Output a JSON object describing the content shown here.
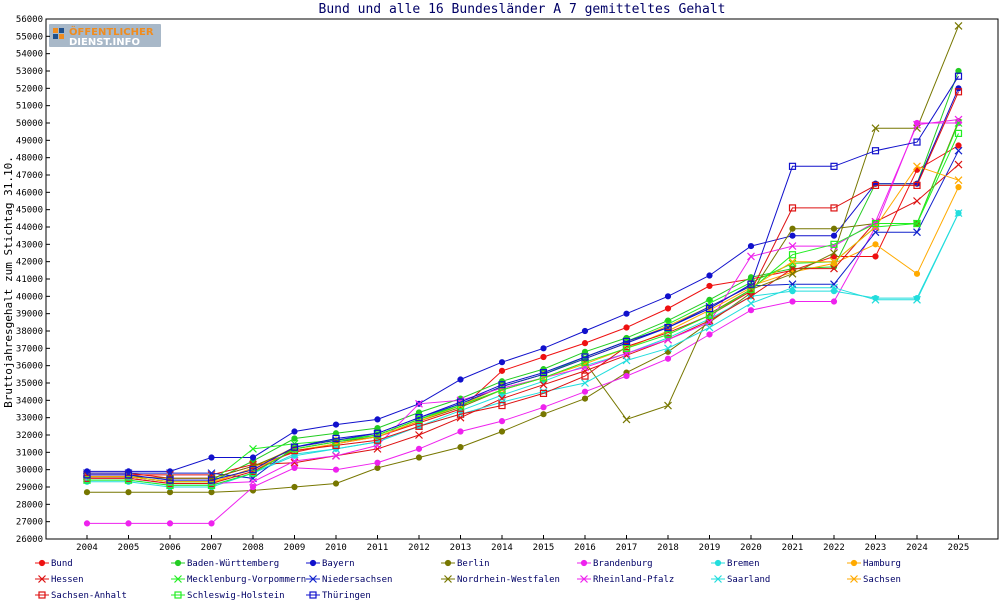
{
  "logo": {
    "line1": "ÖFFENTLICHER",
    "line2": "DIENST.INFO"
  },
  "chart_data": {
    "type": "line",
    "title": "Bund und alle 16 Bundesländer A 7 gemitteltes Gehalt",
    "xlabel": "",
    "ylabel": "Bruttojahresgehalt zum Stichtag 31.10.",
    "x": [
      "2004",
      "2005",
      "2006",
      "2007",
      "2008",
      "2009",
      "2010",
      "2011",
      "2012",
      "2013",
      "2014",
      "2015",
      "2016",
      "2017",
      "2018",
      "2019",
      "2020",
      "2021",
      "2022",
      "2023",
      "2024",
      "2025"
    ],
    "ylim": [
      26000,
      56000
    ],
    "yticks": [
      26000,
      27000,
      28000,
      29000,
      30000,
      31000,
      32000,
      33000,
      34000,
      35000,
      36000,
      37000,
      38000,
      39000,
      40000,
      41000,
      42000,
      43000,
      44000,
      45000,
      46000,
      47000,
      48000,
      49000,
      50000,
      51000,
      52000,
      53000,
      54000,
      55000,
      56000
    ],
    "grid": false,
    "legend_position": "bottom",
    "series": [
      {
        "name": "Bund",
        "color": "#ee1111",
        "marker": "dot",
        "values": [
          29800,
          29800,
          29500,
          29500,
          30200,
          31000,
          31500,
          31900,
          32700,
          33500,
          35700,
          36500,
          37300,
          38200,
          39300,
          40600,
          41000,
          41500,
          42300,
          42300,
          47300,
          48700
        ]
      },
      {
        "name": "Baden-Württemberg",
        "color": "#22cc22",
        "marker": "dot",
        "values": [
          29600,
          29600,
          29300,
          29300,
          30500,
          31800,
          32100,
          32400,
          33300,
          34100,
          35100,
          35800,
          36800,
          37600,
          38600,
          39800,
          41100,
          41600,
          41700,
          46500,
          46500,
          53000
        ]
      },
      {
        "name": "Bayern",
        "color": "#1111cc",
        "marker": "dot",
        "values": [
          29900,
          29900,
          29900,
          30700,
          30700,
          32200,
          32600,
          32900,
          33800,
          35200,
          36200,
          37000,
          38000,
          39000,
          40000,
          41200,
          42900,
          43500,
          43500,
          46500,
          46500,
          52000
        ]
      },
      {
        "name": "Berlin",
        "color": "#777700",
        "marker": "dot",
        "values": [
          28700,
          28700,
          28700,
          28700,
          28800,
          29000,
          29200,
          30100,
          30700,
          31300,
          32200,
          33200,
          34100,
          35600,
          36800,
          38500,
          40200,
          43900,
          43900,
          44200,
          44200,
          50100
        ]
      },
      {
        "name": "Brandenburg",
        "color": "#ee22ee",
        "marker": "dot",
        "values": [
          26900,
          26900,
          26900,
          26900,
          29000,
          30100,
          30000,
          30400,
          31200,
          32200,
          32800,
          33600,
          34500,
          35400,
          36400,
          37800,
          39200,
          39700,
          39700,
          44000,
          50000,
          50000
        ]
      },
      {
        "name": "Bremen",
        "color": "#22dddd",
        "marker": "dot",
        "values": [
          29300,
          29300,
          29000,
          29000,
          29800,
          30800,
          31200,
          31600,
          32500,
          33400,
          34300,
          35100,
          36000,
          36700,
          37600,
          38700,
          40000,
          40300,
          40300,
          39900,
          39900,
          44800
        ]
      },
      {
        "name": "Hamburg",
        "color": "#ffaa00",
        "marker": "dot",
        "values": [
          29500,
          29500,
          29200,
          29200,
          30100,
          31300,
          31700,
          32000,
          32900,
          33700,
          34800,
          35500,
          36400,
          37300,
          38300,
          39400,
          40600,
          41400,
          41900,
          43000,
          41300,
          46300
        ]
      },
      {
        "name": "Hessen",
        "color": "#dd1111",
        "marker": "x",
        "values": [
          29700,
          29700,
          29700,
          29700,
          30300,
          30400,
          30800,
          31200,
          32000,
          33000,
          34100,
          34900,
          35700,
          36600,
          37500,
          38600,
          40000,
          41600,
          41600,
          44300,
          45500,
          47600
        ]
      },
      {
        "name": "Mecklenburg-Vorpommern",
        "color": "#22ee22",
        "marker": "x",
        "values": [
          29600,
          29600,
          29300,
          29300,
          31200,
          31500,
          31700,
          32000,
          32900,
          33800,
          34800,
          35500,
          36500,
          37400,
          38400,
          39600,
          40800,
          41900,
          42000,
          44000,
          44200,
          50000
        ]
      },
      {
        "name": "Niedersachsen",
        "color": "#1122cc",
        "marker": "x",
        "values": [
          29800,
          29800,
          29800,
          29800,
          29500,
          31300,
          31700,
          32100,
          33000,
          33800,
          34800,
          35500,
          36400,
          37300,
          38200,
          39400,
          40600,
          40700,
          40700,
          43700,
          43700,
          48400
        ]
      },
      {
        "name": "Nordrhein-Westfalen",
        "color": "#777700",
        "marker": "x",
        "values": [
          29600,
          29600,
          29500,
          29500,
          30200,
          31200,
          31600,
          31900,
          32800,
          33600,
          34600,
          35300,
          36200,
          32900,
          33700,
          39000,
          40400,
          41300,
          42500,
          49700,
          49700,
          55600
        ]
      },
      {
        "name": "Rheinland-Pfalz",
        "color": "#ee22ee",
        "marker": "x",
        "values": [
          29500,
          29500,
          29200,
          29200,
          29300,
          30500,
          30800,
          31400,
          33800,
          34000,
          34700,
          35300,
          35900,
          36700,
          37500,
          38500,
          42300,
          42900,
          42900,
          44300,
          49900,
          50200
        ]
      },
      {
        "name": "Saarland",
        "color": "#22dddd",
        "marker": "x",
        "values": [
          29400,
          29400,
          29100,
          29100,
          29800,
          30900,
          31200,
          31600,
          32500,
          33200,
          33900,
          34500,
          35000,
          36300,
          37000,
          38200,
          39600,
          40500,
          40500,
          39800,
          39800,
          44800
        ]
      },
      {
        "name": "Sachsen",
        "color": "#ffaa00",
        "marker": "x",
        "values": [
          29600,
          29600,
          29300,
          29300,
          30000,
          31100,
          31500,
          31900,
          32800,
          33700,
          34600,
          35300,
          36100,
          37000,
          38000,
          39200,
          40500,
          42000,
          42000,
          44000,
          47500,
          46700
        ]
      },
      {
        "name": "Sachsen-Anhalt",
        "color": "#dd1111",
        "marker": "square",
        "values": [
          29500,
          29500,
          29200,
          29200,
          29900,
          31100,
          31400,
          31700,
          32500,
          33200,
          33700,
          34400,
          35400,
          37100,
          37900,
          38900,
          40300,
          45100,
          45100,
          46400,
          46400,
          51800
        ]
      },
      {
        "name": "Schleswig-Holstein",
        "color": "#22ee22",
        "marker": "square",
        "values": [
          29400,
          29400,
          29100,
          29100,
          29800,
          31200,
          31600,
          32000,
          32900,
          33700,
          34600,
          35300,
          36200,
          37000,
          37800,
          38900,
          40400,
          42400,
          43000,
          44200,
          44200,
          49400
        ]
      },
      {
        "name": "Thüringen",
        "color": "#1111cc",
        "marker": "square",
        "values": [
          29700,
          29700,
          29400,
          29400,
          30000,
          31300,
          31800,
          32100,
          33000,
          33900,
          34900,
          35600,
          36500,
          37400,
          38200,
          39300,
          40700,
          47500,
          47500,
          48400,
          48900,
          52700
        ]
      }
    ]
  }
}
